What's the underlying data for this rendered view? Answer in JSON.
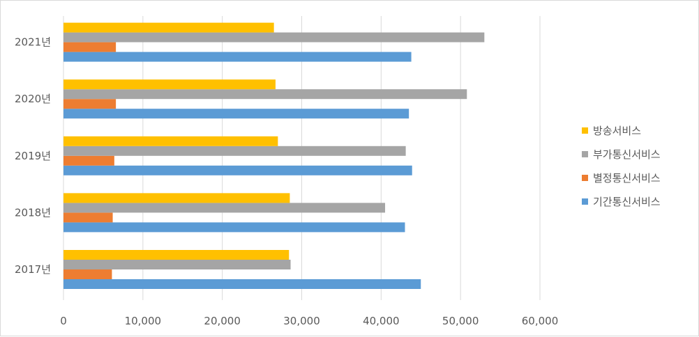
{
  "chart_data": {
    "type": "bar",
    "orientation": "horizontal",
    "categories": [
      "2017년",
      "2018년",
      "2019년",
      "2020년",
      "2021년"
    ],
    "series": [
      {
        "name": "기간통신서비스",
        "color": "#5b9bd5",
        "values": [
          45000,
          43000,
          43900,
          43500,
          43800
        ]
      },
      {
        "name": "별정통신서비스",
        "color": "#ed7d31",
        "values": [
          6100,
          6200,
          6400,
          6600,
          6600
        ]
      },
      {
        "name": "부가통신서비스",
        "color": "#a5a5a5",
        "values": [
          28600,
          40500,
          43100,
          50800,
          53000
        ]
      },
      {
        "name": "방송서비스",
        "color": "#ffc000",
        "values": [
          28400,
          28500,
          27000,
          26700,
          26500
        ]
      }
    ],
    "xlim": [
      0,
      60000
    ],
    "xticks": [
      "0",
      "10,000",
      "20,000",
      "30,000",
      "40,000",
      "50,000",
      "60,000"
    ],
    "grid": true,
    "legend_position": "right",
    "legend_order": [
      "방송서비스",
      "부가통신서비스",
      "별정통신서비스",
      "기간통신서비스"
    ]
  }
}
